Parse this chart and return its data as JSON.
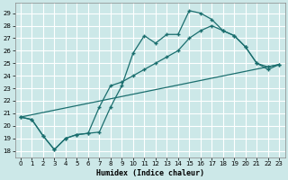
{
  "xlabel": "Humidex (Indice chaleur)",
  "bg_color": "#cce8e8",
  "grid_color": "#ffffff",
  "line_color": "#1a6e6e",
  "xlim": [
    -0.5,
    23.5
  ],
  "ylim": [
    17.5,
    29.8
  ],
  "yticks": [
    18,
    19,
    20,
    21,
    22,
    23,
    24,
    25,
    26,
    27,
    28,
    29
  ],
  "xticks": [
    0,
    1,
    2,
    3,
    4,
    5,
    6,
    7,
    8,
    9,
    10,
    11,
    12,
    13,
    14,
    15,
    16,
    17,
    18,
    19,
    20,
    21,
    22,
    23
  ],
  "line1_x": [
    0,
    1,
    2,
    3,
    4,
    5,
    6,
    7,
    8,
    9,
    10,
    11,
    12,
    13,
    14,
    15,
    16,
    17,
    18,
    19,
    20,
    21,
    22,
    23
  ],
  "line1_y": [
    20.7,
    20.5,
    19.2,
    18.1,
    19.0,
    19.3,
    19.4,
    19.5,
    21.5,
    23.2,
    25.8,
    27.2,
    26.6,
    27.3,
    27.3,
    29.2,
    29.0,
    28.5,
    27.6,
    27.2,
    26.3,
    25.0,
    24.5,
    24.9
  ],
  "line2_x": [
    0,
    1,
    2,
    3,
    4,
    5,
    6,
    7,
    8,
    9,
    10,
    11,
    12,
    13,
    14,
    15,
    16,
    17,
    18,
    19,
    20,
    21,
    22,
    23
  ],
  "line2_y": [
    20.7,
    20.5,
    19.2,
    18.1,
    19.0,
    19.3,
    19.4,
    21.5,
    23.2,
    23.5,
    24.0,
    24.5,
    25.0,
    25.5,
    26.0,
    27.0,
    27.6,
    28.0,
    27.6,
    27.2,
    26.3,
    25.0,
    24.7,
    24.9
  ],
  "line3_x": [
    0,
    23
  ],
  "line3_y": [
    20.7,
    24.9
  ]
}
